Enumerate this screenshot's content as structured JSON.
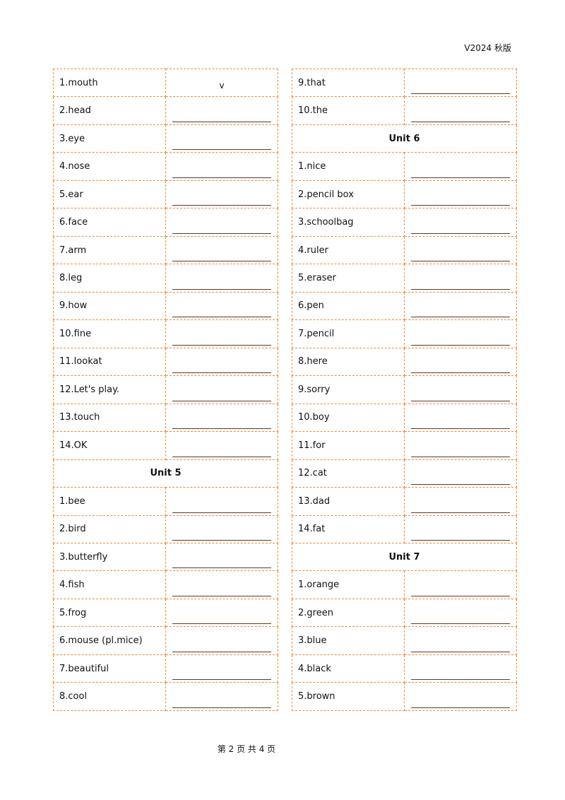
{
  "header": {
    "version": "V2024 秋版"
  },
  "left": {
    "rows": [
      {
        "label": "1.mouth",
        "answer": "v"
      },
      {
        "label": "2.head"
      },
      {
        "label": "3.eye"
      },
      {
        "label": "4.nose"
      },
      {
        "label": "5.ear"
      },
      {
        "label": "6.face"
      },
      {
        "label": "7.arm"
      },
      {
        "label": "8.leg"
      },
      {
        "label": "9.how"
      },
      {
        "label": "10.fine"
      },
      {
        "label": "11.lookat"
      },
      {
        "label": "12.Let's  play."
      },
      {
        "label": "13.touch"
      },
      {
        "label": "14.OK"
      },
      {
        "heading": "Unit 5"
      },
      {
        "label": "1.bee"
      },
      {
        "label": "2.bird"
      },
      {
        "label": "3.butterfly"
      },
      {
        "label": "4.fish"
      },
      {
        "label": "5.frog"
      },
      {
        "label": "6.mouse  (pl.mice)"
      },
      {
        "label": "7.beautiful"
      },
      {
        "label": "8.cool"
      }
    ]
  },
  "right": {
    "rows": [
      {
        "label": "9.that"
      },
      {
        "label": "10.the"
      },
      {
        "heading": "Unit 6"
      },
      {
        "label": "1.nice"
      },
      {
        "label": "2.pencil  box"
      },
      {
        "label": "3.schoolbag"
      },
      {
        "label": "4.ruler"
      },
      {
        "label": "5.eraser"
      },
      {
        "label": "6.pen"
      },
      {
        "label": "7.pencil"
      },
      {
        "label": "8.here"
      },
      {
        "label": "9.sorry"
      },
      {
        "label": "10.boy"
      },
      {
        "label": "11.for"
      },
      {
        "label": "12.cat"
      },
      {
        "label": "13.dad"
      },
      {
        "label": "14.fat"
      },
      {
        "heading": "Unit 7"
      },
      {
        "label": "1.orange"
      },
      {
        "label": "2.green"
      },
      {
        "label": "3.blue"
      },
      {
        "label": "4.black"
      },
      {
        "label": "5.brown"
      }
    ]
  },
  "footer": {
    "page": "第 2 页 共 4 页"
  }
}
